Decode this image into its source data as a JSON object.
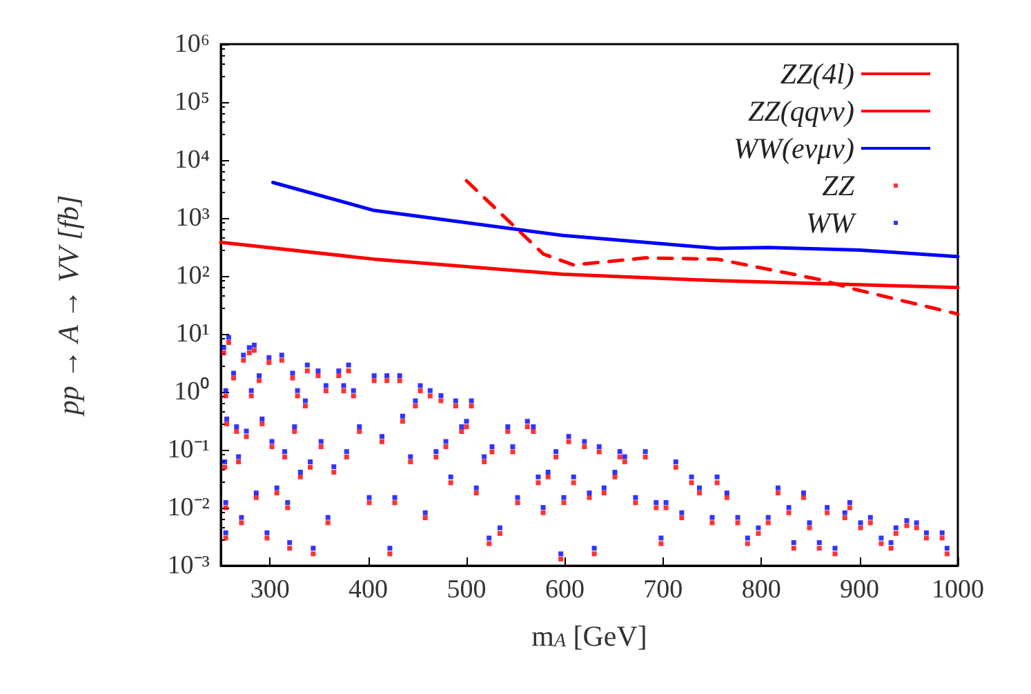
{
  "chart_data": {
    "type": "scatter",
    "xlabel": "m$_{A}$ [GeV]",
    "ylabel": "pp → A → VV [fb]",
    "xlim": [
      250,
      1000
    ],
    "xticks": [
      300,
      400,
      500,
      600,
      700,
      800,
      900,
      1000
    ],
    "ylim": [
      0.001,
      1000000
    ],
    "yticks": [
      {
        "value": 0.001,
        "label": "10⁻³"
      },
      {
        "value": 0.01,
        "label": "10⁻²"
      },
      {
        "value": 0.1,
        "label": "10⁻¹"
      },
      {
        "value": 1,
        "label": "10⁰"
      },
      {
        "value": 10,
        "label": "10¹"
      },
      {
        "value": 100,
        "label": "10²"
      },
      {
        "value": 1000,
        "label": "10³"
      },
      {
        "value": 10000,
        "label": "10⁴"
      },
      {
        "value": 100000,
        "label": "10⁵"
      },
      {
        "value": 1000000,
        "label": "10⁶"
      }
    ],
    "log": "y",
    "grid": false,
    "legend": "top right",
    "series": [
      {
        "name": "ZZ(4l)",
        "type": "line",
        "color": "#ff0000",
        "marker": "none",
        "line_style": "solid",
        "x": [
          250,
          406,
          598,
          755,
          1000
        ],
        "values": [
          380,
          195,
          107,
          83,
          63
        ]
      },
      {
        "name": "ZZ(qqνν)",
        "type": "line",
        "color": "#ff0000",
        "marker": "none",
        "line_style": "dashed",
        "x": [
          500,
          578,
          609,
          682,
          755,
          859,
          895,
          1000
        ],
        "values": [
          4400,
          240,
          155,
          205,
          195,
          87,
          59,
          22
        ]
      },
      {
        "name": "WW(eνμν)",
        "type": "line",
        "color": "#0000ff",
        "marker": "none",
        "line_style": "solid",
        "x": [
          303,
          406,
          598,
          755,
          807,
          900,
          1000
        ],
        "values": [
          4100,
          1350,
          500,
          300,
          310,
          280,
          215
        ]
      },
      {
        "name": "ZZ",
        "color": "#ff0000",
        "marker": "square",
        "x": [
          253,
          258,
          255,
          256,
          254,
          255,
          255,
          263,
          266,
          268,
          271,
          273,
          279,
          276,
          281,
          284,
          286,
          289,
          292,
          297,
          299,
          302,
          307,
          312,
          315,
          318,
          320,
          323,
          325,
          328,
          331,
          336,
          338,
          341,
          344,
          349,
          352,
          357,
          359,
          365,
          370,
          375,
          378,
          380,
          385,
          391,
          401,
          406,
          414,
          419,
          422,
          427,
          432,
          435,
          443,
          448,
          453,
          458,
          463,
          469,
          474,
          479,
          484,
          489,
          495,
          500,
          505,
          510,
          518,
          523,
          526,
          534,
          542,
          547,
          552,
          562,
          568,
          573,
          578,
          583,
          591,
          596,
          599,
          604,
          609,
          620,
          625,
          630,
          635,
          640,
          651,
          656,
          661,
          672,
          682,
          693,
          698,
          703,
          713,
          719,
          729,
          737,
          750,
          755,
          765,
          776,
          786,
          797,
          807,
          817,
          828,
          833,
          843,
          849,
          859,
          867,
          875,
          885,
          890,
          901,
          911,
          922,
          932,
          937,
          948,
          958,
          968,
          984,
          989
        ],
        "values": [
          4.7,
          7.1,
          0.85,
          0.28,
          0.05,
          0.01,
          0.003,
          1.73,
          0.207,
          0.062,
          0.0055,
          3.5,
          4.7,
          0.169,
          0.85,
          5.2,
          0.015,
          1.56,
          0.28,
          0.003,
          3.2,
          0.113,
          0.018,
          3.5,
          0.075,
          0.01,
          0.002,
          1.73,
          0.207,
          0.85,
          0.034,
          0.57,
          2.3,
          0.05,
          0.0016,
          1.9,
          0.113,
          1.04,
          0.0055,
          0.041,
          1.9,
          1.04,
          0.075,
          2.3,
          0.85,
          0.207,
          0.0122,
          1.56,
          0.138,
          1.56,
          0.0016,
          0.0122,
          1.56,
          0.31,
          0.062,
          0.57,
          1.04,
          0.0067,
          0.85,
          0.075,
          0.7,
          0.113,
          0.027,
          0.57,
          0.207,
          0.25,
          0.57,
          0.018,
          0.062,
          0.0024,
          0.092,
          0.0036,
          0.207,
          0.092,
          0.0122,
          0.25,
          0.207,
          0.027,
          0.0082,
          0.034,
          0.075,
          0.0013,
          0.0122,
          0.138,
          0.027,
          0.113,
          0.015,
          0.0016,
          0.092,
          0.018,
          0.034,
          0.075,
          0.062,
          0.0122,
          0.075,
          0.01,
          0.0024,
          0.01,
          0.05,
          0.0067,
          0.027,
          0.018,
          0.0055,
          0.027,
          0.015,
          0.0055,
          0.0024,
          0.0036,
          0.0055,
          0.018,
          0.0082,
          0.002,
          0.015,
          0.0045,
          0.002,
          0.0082,
          0.0016,
          0.0067,
          0.01,
          0.0045,
          0.0055,
          0.0024,
          0.002,
          0.0036,
          0.0049,
          0.0045,
          0.003,
          0.003,
          0.0016
        ]
      },
      {
        "name": "WW",
        "color": "#0000ff",
        "marker": "square",
        "x": [
          253,
          258,
          255,
          256,
          254,
          255,
          255,
          263,
          266,
          268,
          271,
          273,
          279,
          276,
          281,
          284,
          286,
          289,
          292,
          297,
          299,
          302,
          307,
          312,
          315,
          318,
          320,
          323,
          325,
          328,
          331,
          336,
          338,
          341,
          344,
          349,
          352,
          357,
          359,
          365,
          370,
          375,
          378,
          380,
          385,
          391,
          401,
          406,
          414,
          419,
          422,
          427,
          432,
          435,
          443,
          448,
          453,
          458,
          463,
          469,
          474,
          479,
          484,
          489,
          495,
          500,
          505,
          510,
          518,
          523,
          526,
          534,
          542,
          547,
          552,
          562,
          568,
          573,
          578,
          583,
          591,
          596,
          599,
          604,
          609,
          620,
          625,
          630,
          635,
          640,
          651,
          656,
          661,
          672,
          682,
          693,
          698,
          703,
          713,
          719,
          729,
          737,
          750,
          755,
          765,
          776,
          786,
          797,
          807,
          817,
          828,
          833,
          843,
          849,
          859,
          867,
          875,
          885,
          890,
          901,
          911,
          922,
          932,
          937,
          948,
          958,
          968,
          984,
          989
        ],
        "values": [
          5.8,
          8.7,
          1.05,
          0.34,
          0.062,
          0.0123,
          0.0037,
          2.1,
          0.25,
          0.076,
          0.0068,
          4.3,
          5.8,
          0.21,
          1.05,
          6.4,
          0.018,
          1.9,
          0.34,
          0.0037,
          3.9,
          0.139,
          0.022,
          4.3,
          0.093,
          0.0123,
          0.0025,
          2.1,
          0.25,
          1.05,
          0.041,
          0.7,
          2.9,
          0.062,
          0.002,
          2.3,
          0.139,
          1.28,
          0.0068,
          0.051,
          2.3,
          1.28,
          0.093,
          2.9,
          1.05,
          0.25,
          0.015,
          1.9,
          0.17,
          1.9,
          0.002,
          0.015,
          1.9,
          0.38,
          0.076,
          0.7,
          1.28,
          0.0082,
          1.05,
          0.093,
          0.86,
          0.139,
          0.034,
          0.7,
          0.25,
          0.31,
          0.7,
          0.022,
          0.076,
          0.003,
          0.113,
          0.0045,
          0.25,
          0.113,
          0.015,
          0.31,
          0.25,
          0.034,
          0.0101,
          0.041,
          0.093,
          0.0016,
          0.015,
          0.17,
          0.034,
          0.139,
          0.018,
          0.002,
          0.113,
          0.022,
          0.041,
          0.093,
          0.076,
          0.015,
          0.093,
          0.0123,
          0.003,
          0.0123,
          0.062,
          0.0082,
          0.034,
          0.022,
          0.0068,
          0.034,
          0.018,
          0.0068,
          0.003,
          0.0045,
          0.0068,
          0.022,
          0.0101,
          0.0025,
          0.018,
          0.0055,
          0.0025,
          0.0101,
          0.002,
          0.0082,
          0.0123,
          0.0055,
          0.0068,
          0.003,
          0.0025,
          0.0045,
          0.006,
          0.0055,
          0.0037,
          0.0037,
          0.002
        ]
      }
    ]
  }
}
